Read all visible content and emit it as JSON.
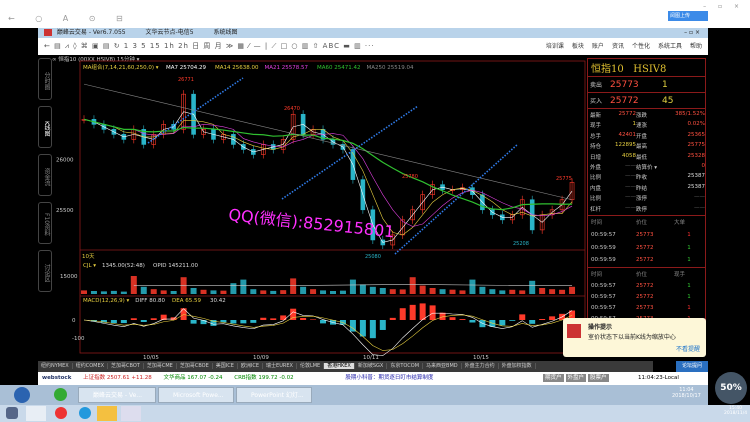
{
  "browser": {
    "nav": "← ○ A ⊙ ⊟",
    "upload": "阅图上传",
    "win": "– ▫ ×"
  },
  "app": {
    "title": "巅峰云交易  -  Ver6.7.055",
    "server": "文华云节点-电信5",
    "mode": "系统线图",
    "winctl": "–  ▫  ×"
  },
  "toolbar": {
    "tools": "← ▤ ⩘ ◊ ⌘ ▣ ▤ ↻ 1 3 5 15 1h 2h 日 周 月 ≫ ▦ ⁄ — | ⟋ □ ○ ▥ ⇧ ABC ▬ ▥ ···",
    "menu": [
      "培训课",
      "板块",
      "账户",
      "资讯",
      "个性化",
      "系统工具",
      "帮助"
    ]
  },
  "sidetabs": [
    {
      "label": "分时图",
      "active": false
    },
    {
      "label": "K线图",
      "active": true
    },
    {
      "label": "资金流",
      "active": false
    },
    {
      "label": "F10资料",
      "active": false
    },
    {
      "label": "讨论区",
      "active": false
    }
  ],
  "symbol_bar": "∞ 恒指10  (00XX HSIV8)  15分钟 ▾",
  "indicators": {
    "ma": "MA组合(7,14,21,60,250,0) ▾",
    "ma7": "MA7 25704.29",
    "ma14": "MA14 25638.00",
    "ma21": "MA21 25578.57",
    "ma60": "MA60 25471.42",
    "ma250": "MA250 25519.04",
    "vol": "CJL ▾",
    "vol_val": "1345.00(52:48)",
    "opid": "OPID 145211.00",
    "macd": "MACD(12,26,9) ▾",
    "diff": "DIFF 80.80",
    "dea": "DEA 65.59",
    "macd_val": "30.42",
    "days": "10天"
  },
  "watermark": "QQ(微信):852915801",
  "colors": {
    "up": "#ff3a2a",
    "down": "#2ab5c9",
    "ma7": "#ffffff",
    "ma14": "#e8d040",
    "ma21": "#e040e0",
    "ma60": "#30c030",
    "ma250": "#888888",
    "arrow": "#2f7be8",
    "watermark": "#ff30ff"
  },
  "chart_data": {
    "type": "candlestick",
    "interval": "15分钟",
    "ylim": [
      25100,
      26980
    ],
    "y_ticks": [
      26000,
      25500
    ],
    "x_ticks": [
      "10/05",
      "10/09",
      "10/11",
      "10/15"
    ],
    "price_labels": [
      "26771",
      "26470",
      "25780",
      "25208",
      "25080",
      "25775"
    ],
    "closes": [
      26400,
      26350,
      26300,
      26250,
      26200,
      26300,
      26150,
      26250,
      26350,
      26300,
      26650,
      26250,
      26300,
      26200,
      26250,
      26150,
      26100,
      26050,
      26150,
      26100,
      26200,
      26450,
      26250,
      26300,
      26200,
      26150,
      26100,
      25800,
      25500,
      25200,
      25150,
      25250,
      25400,
      25500,
      25650,
      25750,
      25700,
      25700,
      25720,
      25650,
      25500,
      25450,
      25400,
      25450,
      25600,
      25300,
      25450,
      25500,
      25600,
      25772
    ],
    "volume": [
      3000,
      2500,
      2200,
      2600,
      2000,
      15000,
      6000,
      4000,
      3000,
      2500,
      14000,
      5000,
      3500,
      3000,
      2800,
      9000,
      12000,
      4000,
      3000,
      2600,
      3200,
      13000,
      6000,
      4000,
      3000,
      2500,
      2800,
      12000,
      8000,
      6000,
      5000,
      4000,
      3800,
      14000,
      7000,
      5000,
      4000,
      3600,
      3000,
      12000,
      6000,
      4000,
      3000,
      3500,
      3000,
      11000,
      5000,
      4000,
      3500,
      6000
    ],
    "vol_ticks": [
      15000
    ],
    "macd_ticks": [
      0,
      -100
    ]
  },
  "quote": {
    "title": "恒指10",
    "code": "HSIV8",
    "sell_label": "卖出",
    "sell": "25773",
    "sell_qty": "1",
    "buy_label": "买入",
    "buy": "25772",
    "buy_qty": "45",
    "rows": [
      [
        "最新",
        "25772",
        "涨跌",
        "385/1.52%"
      ],
      [
        "现手",
        "1",
        "速涨",
        "0.02%"
      ],
      [
        "总手",
        "42401",
        "开盘",
        "25365"
      ],
      [
        "持仓",
        "122895",
        "最高",
        "25775"
      ],
      [
        "日增",
        "4058",
        "最低",
        "25328"
      ],
      [
        "外盘",
        "——",
        "结算价 ▾",
        "0"
      ],
      [
        "比例",
        "——",
        "昨收",
        "25387"
      ],
      [
        "内盘",
        "——",
        "昨结",
        "25387"
      ],
      [
        "比例",
        "——",
        "涨停",
        "——"
      ],
      [
        "杠杆",
        "——",
        "跌停",
        "——"
      ]
    ]
  },
  "ticks1": {
    "headers": [
      "时间",
      "价位",
      "大单"
    ],
    "rows": [
      [
        "00:59:57",
        "25773",
        "1",
        "up"
      ],
      [
        "00:59:59",
        "25772",
        "1",
        "down"
      ],
      [
        "00:59:59",
        "25772",
        "1",
        "down"
      ]
    ]
  },
  "ticks2": {
    "headers": [
      "时间",
      "价位",
      "现手"
    ],
    "rows": [
      [
        "00:59:57",
        "25772",
        "1",
        "down"
      ],
      [
        "00:59:57",
        "25772",
        "1",
        "down"
      ],
      [
        "00:59:57",
        "25773",
        "1",
        "up"
      ],
      [
        "00:59:57",
        "25773",
        "1",
        "up"
      ]
    ]
  },
  "popup": {
    "title": "操作提示",
    "text": "室价状态下以当前K线为缩放中心",
    "link": "不看提醒"
  },
  "tabs": [
    "纽约NYMEX",
    "纽约COMEX",
    "芝加哥CBOT",
    "芝加哥CME",
    "芝加哥CBOE",
    "美国ICE",
    "欧洲ICE",
    "瑞士EUREX",
    "伦敦LME",
    "香港HKEX",
    "新加坡SGX",
    "东京TOCOM",
    "马来西亚BMD",
    "外盘主力合约",
    "外盘加权指数"
  ],
  "active_tab": "香港HKEX",
  "forum": "论坛提问",
  "status": {
    "logo": "webstock",
    "sh_label": "上证指数",
    "sh": "2507.61 +11.28",
    "wh_label": "文华商品",
    "wh": "167.07 -0.24",
    "crb_label": "CRB指数",
    "crb": "199.72 -0.02",
    "tip": "股期小科普：期货逐日盯市结算制度",
    "btns": [
      "期货户",
      "外盘户",
      "股票户"
    ],
    "time": "11:04:23-Local"
  },
  "taskbar": {
    "items": [
      "巅峰云交易 - Ve...",
      "Microsoft Powe...",
      "PowerPoint 幻灯..."
    ],
    "time": "11:04",
    "date": "2018/10/17",
    "time2": "15:40",
    "date2": "2018/11/4",
    "battery": "50%"
  }
}
